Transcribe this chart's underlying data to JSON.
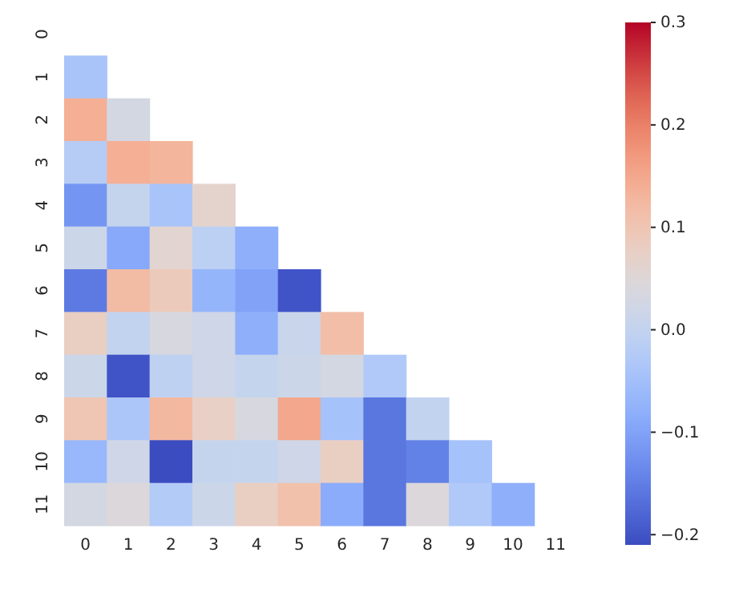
{
  "chart_data": {
    "type": "heatmap",
    "categories": [
      "0",
      "1",
      "2",
      "3",
      "4",
      "5",
      "6",
      "7",
      "8",
      "9",
      "10",
      "11"
    ],
    "y_categories": [
      "0",
      "1",
      "2",
      "3",
      "4",
      "5",
      "6",
      "7",
      "8",
      "9",
      "10",
      "11"
    ],
    "cells": [
      [
        null,
        null,
        null,
        null,
        null,
        null,
        null,
        null,
        null,
        null,
        null,
        null
      ],
      [
        -0.04,
        null,
        null,
        null,
        null,
        null,
        null,
        null,
        null,
        null,
        null,
        null
      ],
      [
        0.14,
        0.03,
        null,
        null,
        null,
        null,
        null,
        null,
        null,
        null,
        null,
        null
      ],
      [
        -0.02,
        0.14,
        0.13,
        null,
        null,
        null,
        null,
        null,
        null,
        null,
        null,
        null
      ],
      [
        -0.12,
        0.005,
        -0.04,
        0.065,
        null,
        null,
        null,
        null,
        null,
        null,
        null,
        null
      ],
      [
        0.015,
        -0.09,
        0.06,
        -0.01,
        -0.08,
        null,
        null,
        null,
        null,
        null,
        null,
        null
      ],
      [
        -0.155,
        0.12,
        0.09,
        -0.07,
        -0.1,
        -0.2,
        null,
        null,
        null,
        null,
        null,
        null
      ],
      [
        0.08,
        0.0,
        0.035,
        0.02,
        -0.08,
        0.01,
        0.115,
        null,
        null,
        null,
        null,
        null
      ],
      [
        0.015,
        -0.2,
        -0.005,
        0.02,
        0.005,
        0.015,
        0.03,
        -0.03,
        null,
        null,
        null,
        null
      ],
      [
        0.1,
        -0.035,
        0.125,
        0.075,
        0.035,
        0.15,
        -0.045,
        -0.16,
        0.0,
        null,
        null,
        null
      ],
      [
        -0.065,
        0.02,
        -0.21,
        0.005,
        0.005,
        0.02,
        0.08,
        -0.16,
        -0.145,
        -0.045,
        null,
        null
      ],
      [
        0.03,
        0.045,
        -0.025,
        0.015,
        0.08,
        0.11,
        -0.085,
        -0.16,
        0.045,
        -0.03,
        -0.08,
        null
      ]
    ],
    "clim": [
      -0.21,
      0.3
    ],
    "cticks": [
      {
        "value": -0.2,
        "label": "−0.2"
      },
      {
        "value": -0.1,
        "label": "−0.1"
      },
      {
        "value": 0,
        "label": "0.0"
      },
      0.1,
      0.2,
      0.3
    ]
  }
}
